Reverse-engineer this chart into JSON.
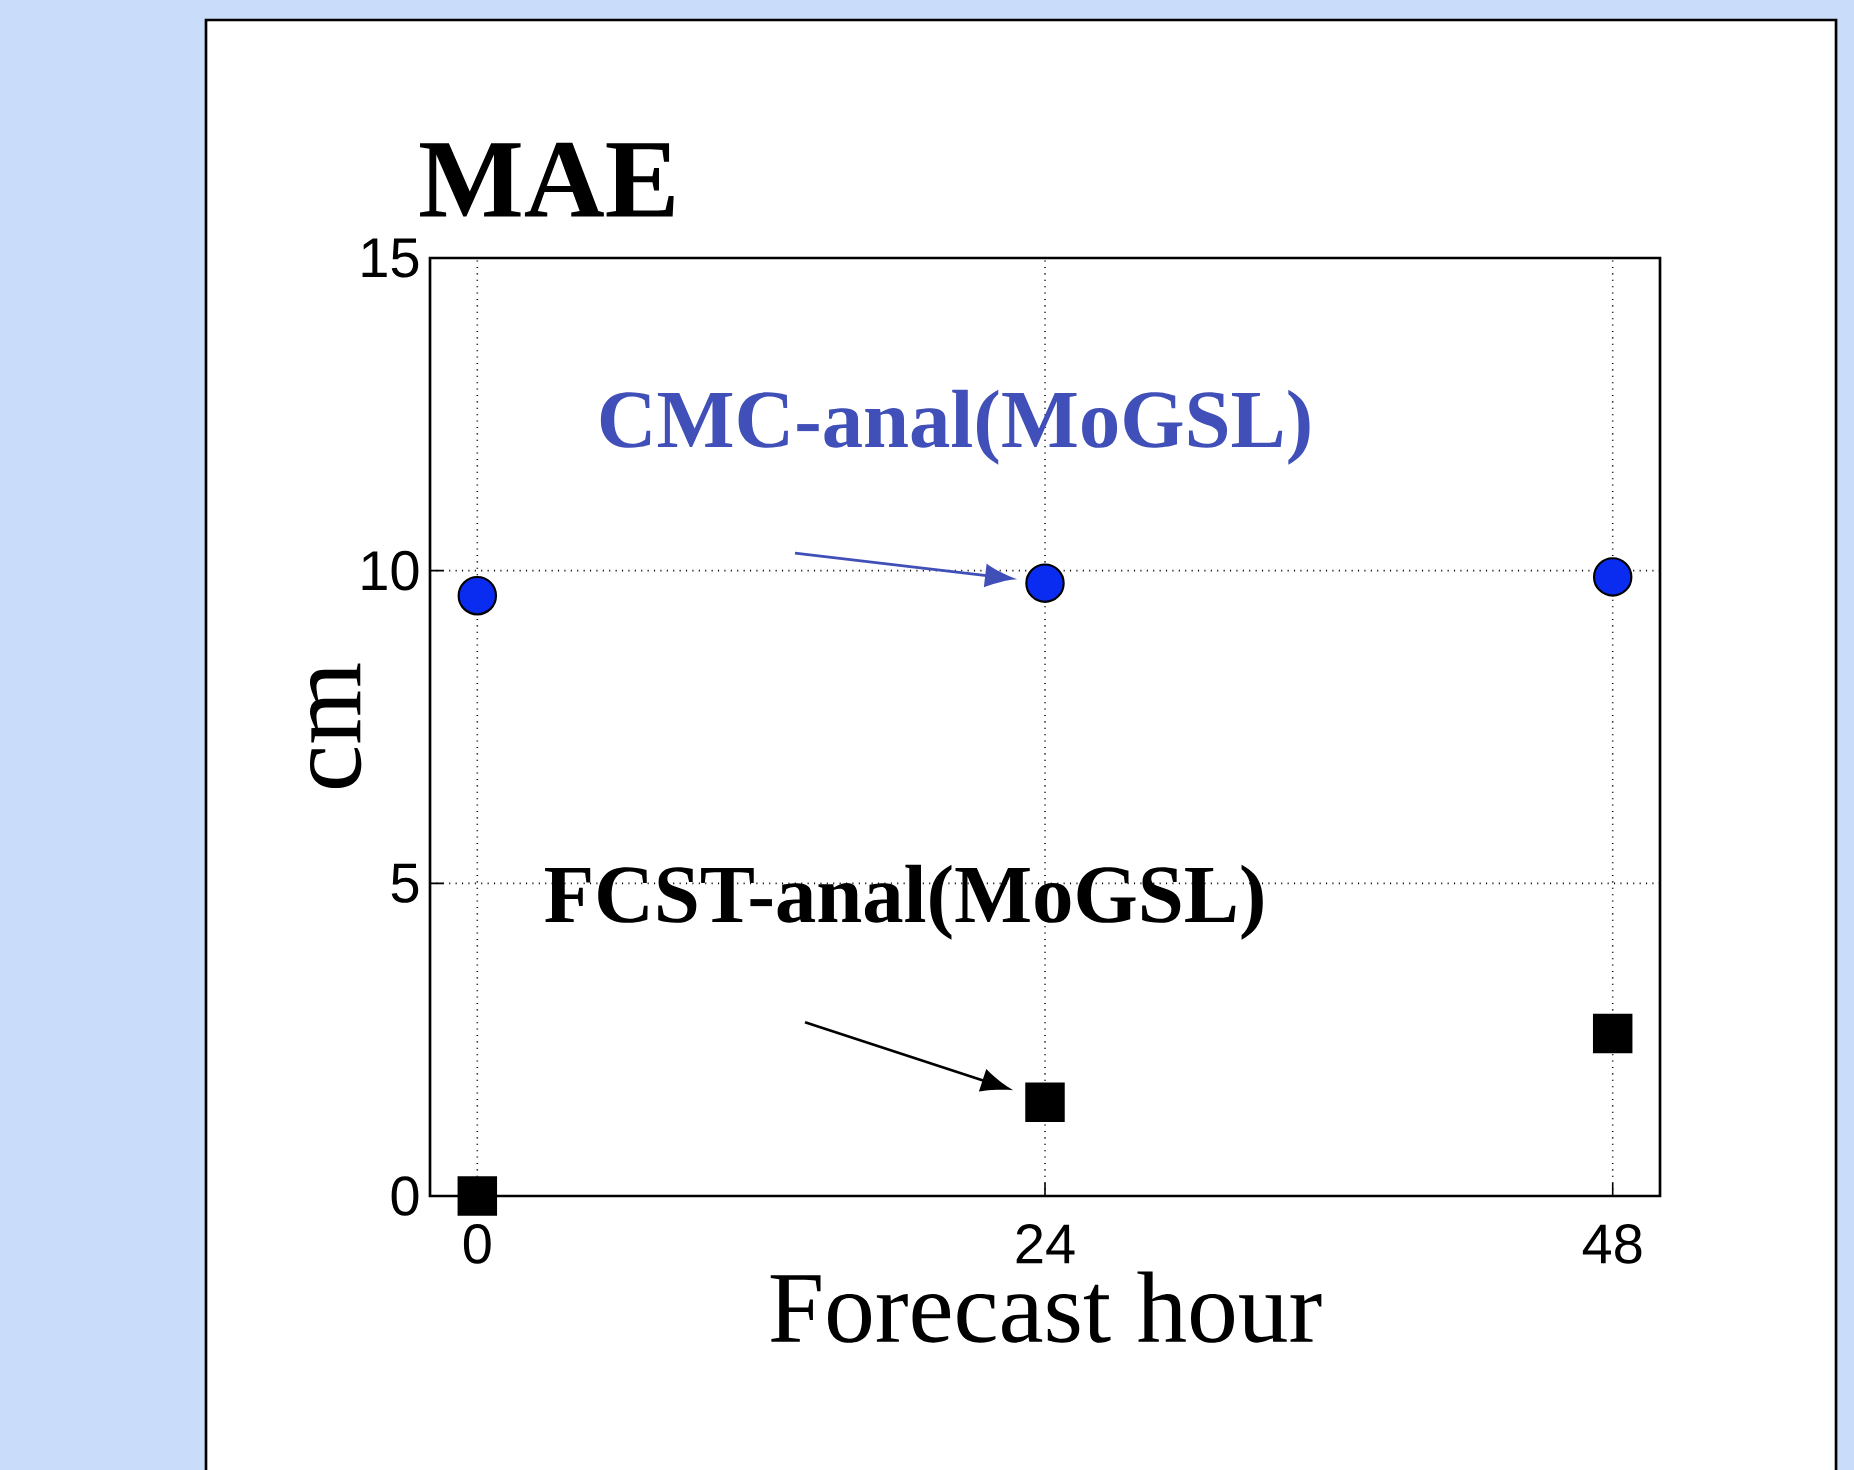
{
  "chart_data": {
    "type": "scatter",
    "title": "MAE",
    "xlabel": "Forecast hour",
    "ylabel": "cm",
    "xlim": [
      -2,
      50
    ],
    "xticks": [
      0,
      24,
      48
    ],
    "ylim": [
      0,
      15
    ],
    "yticks": [
      0,
      5,
      10,
      15
    ],
    "grid": true,
    "series": [
      {
        "name": "CMC-anal(MoGSL)",
        "color": "#0a2cf0",
        "marker": "circle",
        "x": [
          0,
          24,
          48
        ],
        "values": [
          9.6,
          9.8,
          9.9
        ]
      },
      {
        "name": "FCST-anal(MoGSL)",
        "color": "#000000",
        "marker": "square",
        "x": [
          0,
          24,
          48
        ],
        "values": [
          0,
          1.5,
          2.6
        ]
      }
    ]
  }
}
